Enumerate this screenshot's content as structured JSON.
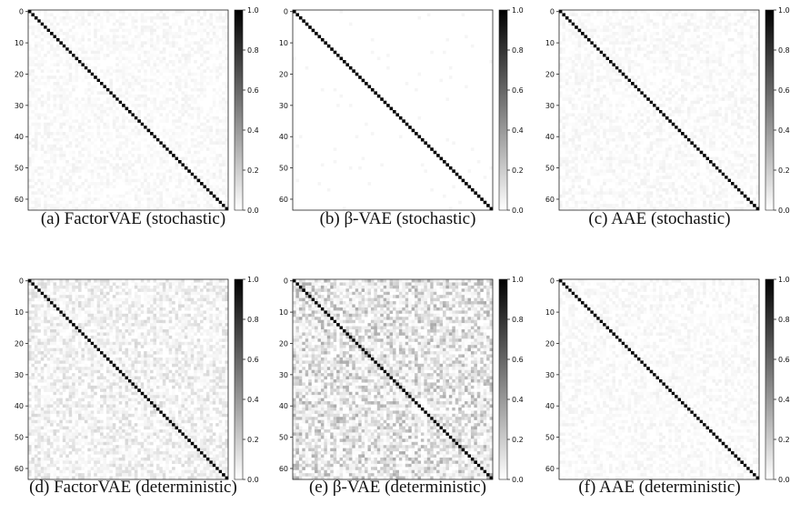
{
  "chart_data": [
    {
      "type": "heatmap",
      "id": "a",
      "caption": "(a) FactorVAE (stochastic)",
      "noise": "low",
      "matrix_size": 64,
      "diagonal_value": 1.0,
      "x_ticklabels": [],
      "y_ticklabels": [
        "0",
        "10",
        "20",
        "30",
        "40",
        "50",
        "60"
      ],
      "colorbar_ticks": [
        "0.0",
        "0.2",
        "0.4",
        "0.6",
        "0.8",
        "1.0"
      ],
      "vmin": 0.0,
      "vmax": 1.0,
      "colormap": "white-to-black"
    },
    {
      "type": "heatmap",
      "id": "b",
      "caption": "(b) β-VAE (stochastic)",
      "noise": "none",
      "matrix_size": 64,
      "diagonal_value": 1.0,
      "x_ticklabels": [],
      "y_ticklabels": [
        "0",
        "10",
        "20",
        "30",
        "40",
        "50",
        "60"
      ],
      "colorbar_ticks": [
        "0.0",
        "0.2",
        "0.4",
        "0.6",
        "0.8",
        "1.0"
      ],
      "vmin": 0.0,
      "vmax": 1.0,
      "colormap": "white-to-black"
    },
    {
      "type": "heatmap",
      "id": "c",
      "caption": "(c) AAE (stochastic)",
      "noise": "low",
      "matrix_size": 64,
      "diagonal_value": 1.0,
      "x_ticklabels": [],
      "y_ticklabels": [
        "0",
        "10",
        "20",
        "30",
        "40",
        "50",
        "60"
      ],
      "colorbar_ticks": [
        "0.0",
        "0.2",
        "0.4",
        "0.6",
        "0.8",
        "1.0"
      ],
      "vmin": 0.0,
      "vmax": 1.0,
      "colormap": "white-to-black"
    },
    {
      "type": "heatmap",
      "id": "d",
      "caption": "(d) FactorVAE (deterministic)",
      "noise": "medium",
      "matrix_size": 64,
      "diagonal_value": 1.0,
      "x_ticklabels": [],
      "y_ticklabels": [
        "0",
        "10",
        "20",
        "30",
        "40",
        "50",
        "60"
      ],
      "colorbar_ticks": [
        "0.0",
        "0.2",
        "0.4",
        "0.6",
        "0.8",
        "1.0"
      ],
      "vmin": 0.0,
      "vmax": 1.0,
      "colormap": "white-to-black"
    },
    {
      "type": "heatmap",
      "id": "e",
      "caption": "(e) β-VAE (deterministic)",
      "noise": "high",
      "matrix_size": 64,
      "diagonal_value": 1.0,
      "x_ticklabels": [],
      "y_ticklabels": [
        "0",
        "10",
        "20",
        "30",
        "40",
        "50",
        "60"
      ],
      "colorbar_ticks": [
        "0.0",
        "0.2",
        "0.4",
        "0.6",
        "0.8",
        "1.0"
      ],
      "vmin": 0.0,
      "vmax": 1.0,
      "colormap": "white-to-black"
    },
    {
      "type": "heatmap",
      "id": "f",
      "caption": "(f) AAE (deterministic)",
      "noise": "low",
      "matrix_size": 64,
      "diagonal_value": 1.0,
      "x_ticklabels": [],
      "y_ticklabels": [
        "0",
        "10",
        "20",
        "30",
        "40",
        "50",
        "60"
      ],
      "colorbar_ticks": [
        "0.0",
        "0.2",
        "0.4",
        "0.6",
        "0.8",
        "1.0"
      ],
      "vmin": 0.0,
      "vmax": 1.0,
      "colormap": "white-to-black"
    }
  ]
}
